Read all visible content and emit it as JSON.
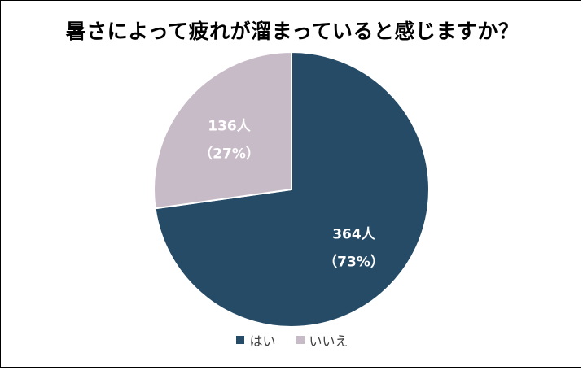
{
  "chart_data": {
    "type": "pie",
    "title": "暑さによって疲れが溜まっていると感じますか？",
    "categories": [
      "はい",
      "いいえ"
    ],
    "values": [
      364,
      136
    ],
    "percent_labels": [
      "（73%）",
      "（27%）"
    ],
    "count_labels": [
      "364人",
      "136人"
    ],
    "colors": [
      "#264B66",
      "#C8BBC8"
    ],
    "legend_position": "bottom"
  }
}
